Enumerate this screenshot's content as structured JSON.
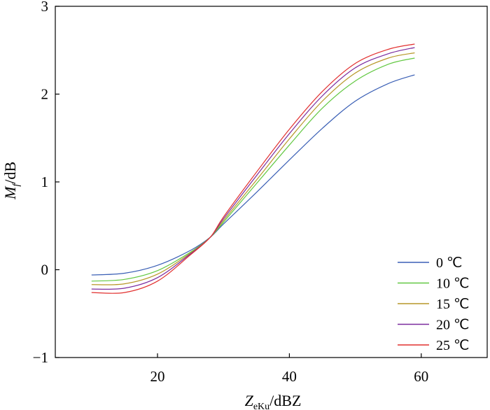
{
  "chart_data": {
    "type": "line",
    "xlabel": {
      "main": "Z",
      "sub": "eKu",
      "rest": "/dBZ"
    },
    "ylabel": {
      "main": "M",
      "sub": "f",
      "rest": "/dB"
    },
    "xlim": [
      4.5,
      70
    ],
    "ylim": [
      -1,
      3
    ],
    "xticks": [
      20,
      40,
      60
    ],
    "yticks": [
      -1,
      0,
      1,
      2,
      3
    ],
    "xtick_labels": [
      "20",
      "40",
      "60"
    ],
    "ytick_labels": [
      "−1",
      "0",
      "1",
      "2",
      "3"
    ],
    "grid": false,
    "legend_position": "bottom-right",
    "x": [
      10,
      15,
      20,
      25,
      28,
      30,
      35,
      40,
      45,
      50,
      55,
      59
    ],
    "series": [
      {
        "name": "0 ℃",
        "color": "#3a5fb5",
        "values": [
          -0.06,
          -0.04,
          0.05,
          0.22,
          0.37,
          0.52,
          0.88,
          1.25,
          1.61,
          1.92,
          2.12,
          2.22
        ]
      },
      {
        "name": "10 ℃",
        "color": "#62c842",
        "values": [
          -0.13,
          -0.11,
          -0.01,
          0.2,
          0.37,
          0.54,
          0.98,
          1.42,
          1.84,
          2.15,
          2.34,
          2.41
        ]
      },
      {
        "name": "15 ℃",
        "color": "#b79728",
        "values": [
          -0.17,
          -0.16,
          -0.05,
          0.19,
          0.37,
          0.56,
          1.02,
          1.49,
          1.92,
          2.24,
          2.41,
          2.47
        ]
      },
      {
        "name": "20 ℃",
        "color": "#7a2a9e",
        "values": [
          -0.22,
          -0.21,
          -0.09,
          0.18,
          0.37,
          0.58,
          1.07,
          1.55,
          1.98,
          2.3,
          2.46,
          2.53
        ]
      },
      {
        "name": "25 ℃",
        "color": "#e2302f",
        "values": [
          -0.26,
          -0.26,
          -0.13,
          0.17,
          0.37,
          0.6,
          1.11,
          1.6,
          2.03,
          2.35,
          2.51,
          2.57
        ]
      }
    ]
  }
}
